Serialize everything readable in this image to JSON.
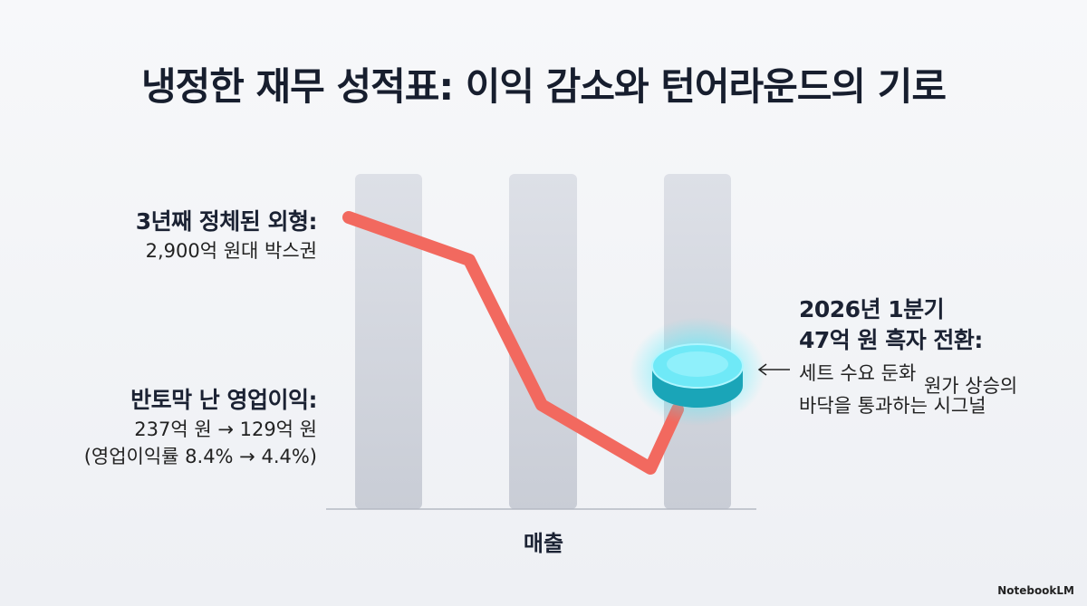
{
  "title": "냉정한 재무 성적표: 이익 감소와 턴어라운드의 기로",
  "left_top": {
    "heading": "3년째 정체된 외형:",
    "lines": [
      "2,900억 원대 박스권"
    ]
  },
  "left_bottom": {
    "heading": "반토막 난 영업이익:",
    "lines": [
      "237억 원 → 129억 원",
      "(영업이익률 8.4% → 4.4%)"
    ]
  },
  "right": {
    "heading": [
      "2026년 1분기",
      "47억 원 흑자 전환:"
    ],
    "lines": [
      "세트 수요 둔화",
      "원가 상승의",
      "바닥을 통과하는 시그널"
    ]
  },
  "axis_label": "매출",
  "watermark": "NotebookLM"
}
